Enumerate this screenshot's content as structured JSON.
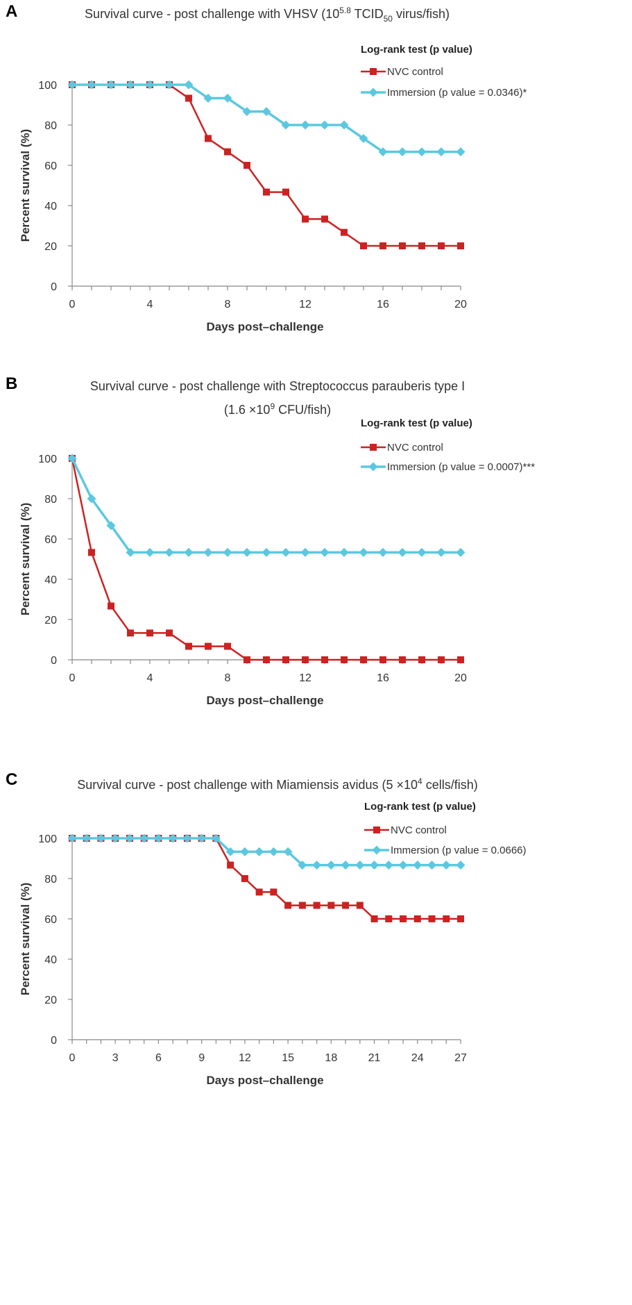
{
  "chart_data": [
    {
      "panel": "A",
      "type": "line",
      "title": "Survival curve - post challenge with VHSV (10",
      "title_sup": "5.8",
      "title_mid": " TCID",
      "title_sub": "50",
      "title_end": " virus/fish)",
      "xlabel": "Days post–challenge",
      "ylabel": "Percent survival (%)",
      "xlim": [
        0,
        20
      ],
      "ylim": [
        0,
        100
      ],
      "xticks": [
        0,
        4,
        8,
        12,
        16,
        20
      ],
      "yticks": [
        0,
        20,
        40,
        60,
        80,
        100
      ],
      "legend_title": "Log-rank test (p value)",
      "x": [
        0,
        1,
        2,
        3,
        4,
        5,
        6,
        7,
        8,
        9,
        10,
        11,
        12,
        13,
        14,
        15,
        16,
        17,
        18,
        19,
        20
      ],
      "series": [
        {
          "name": "NVC control",
          "color": "#cc2222",
          "marker": "square",
          "values": [
            100,
            100,
            100,
            100,
            100,
            100,
            93.3,
            73.3,
            66.7,
            60,
            46.7,
            46.7,
            33.3,
            33.3,
            26.7,
            20,
            20,
            20,
            20,
            20,
            20
          ]
        },
        {
          "name": "Immersion (p value = 0.0346)*",
          "color": "#5bc8e0",
          "marker": "diamond",
          "values": [
            100,
            100,
            100,
            100,
            100,
            100,
            100,
            93.3,
            93.3,
            86.7,
            86.7,
            80,
            80,
            80,
            80,
            73.3,
            66.7,
            66.7,
            66.7,
            66.7,
            66.7
          ]
        }
      ]
    },
    {
      "panel": "B",
      "type": "line",
      "title": "Survival curve - post challenge with Streptococcus parauberis type I",
      "title_line2": "(1.6 ×10",
      "title_line2_sup": "9",
      "title_line2_end": " CFU/fish)",
      "xlabel": "Days post–challenge",
      "ylabel": "Percent survival (%)",
      "xlim": [
        0,
        20
      ],
      "ylim": [
        0,
        100
      ],
      "xticks": [
        0,
        4,
        8,
        12,
        16,
        20
      ],
      "yticks": [
        0,
        20,
        40,
        60,
        80,
        100
      ],
      "legend_title": "Log-rank test (p value)",
      "x": [
        0,
        1,
        2,
        3,
        4,
        5,
        6,
        7,
        8,
        9,
        10,
        11,
        12,
        13,
        14,
        15,
        16,
        17,
        18,
        19,
        20
      ],
      "series": [
        {
          "name": "NVC control",
          "color": "#cc2222",
          "marker": "square",
          "values": [
            100,
            53.3,
            26.7,
            13.3,
            13.3,
            13.3,
            6.7,
            6.7,
            6.7,
            0,
            0,
            0,
            0,
            0,
            0,
            0,
            0,
            0,
            0,
            0,
            0
          ]
        },
        {
          "name": "Immersion (p value = 0.0007)***",
          "color": "#5bc8e0",
          "marker": "diamond",
          "values": [
            100,
            80,
            66.7,
            53.3,
            53.3,
            53.3,
            53.3,
            53.3,
            53.3,
            53.3,
            53.3,
            53.3,
            53.3,
            53.3,
            53.3,
            53.3,
            53.3,
            53.3,
            53.3,
            53.3,
            53.3
          ]
        }
      ]
    },
    {
      "panel": "C",
      "type": "line",
      "title": "Survival curve - post challenge with Miamiensis avidus (5 ×10",
      "title_sup": "4",
      "title_end": " cells/fish)",
      "xlabel": "Days post–challenge",
      "ylabel": "Percent survival (%)",
      "xlim": [
        0,
        27
      ],
      "ylim": [
        0,
        100
      ],
      "xticks": [
        0,
        3,
        6,
        9,
        12,
        15,
        18,
        21,
        24,
        27
      ],
      "yticks": [
        0,
        20,
        40,
        60,
        80,
        100
      ],
      "legend_title": "Log-rank test (p value)",
      "x": [
        0,
        1,
        2,
        3,
        4,
        5,
        6,
        7,
        8,
        9,
        10,
        11,
        12,
        13,
        14,
        15,
        16,
        17,
        18,
        19,
        20,
        21,
        22,
        23,
        24,
        25,
        26,
        27
      ],
      "series": [
        {
          "name": "NVC control",
          "color": "#cc2222",
          "marker": "square",
          "values": [
            100,
            100,
            100,
            100,
            100,
            100,
            100,
            100,
            100,
            100,
            100,
            86.7,
            80,
            73.3,
            73.3,
            66.7,
            66.7,
            66.7,
            66.7,
            66.7,
            66.7,
            60,
            60,
            60,
            60,
            60,
            60,
            60
          ]
        },
        {
          "name": "Immersion (p value = 0.0666)",
          "color": "#5bc8e0",
          "marker": "diamond",
          "values": [
            100,
            100,
            100,
            100,
            100,
            100,
            100,
            100,
            100,
            100,
            100,
            93.3,
            93.3,
            93.3,
            93.3,
            93.3,
            86.7,
            86.7,
            86.7,
            86.7,
            86.7,
            86.7,
            86.7,
            86.7,
            86.7,
            86.7,
            86.7,
            86.7
          ]
        }
      ]
    }
  ]
}
